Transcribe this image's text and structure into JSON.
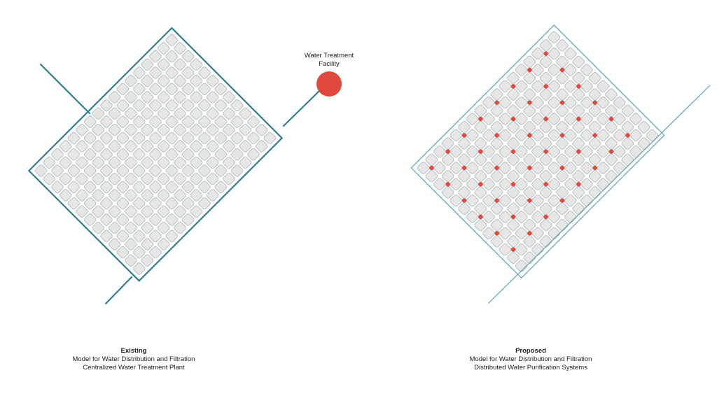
{
  "colors": {
    "teal": "#2e7f8f",
    "teal_light": "#5fa3b3",
    "cell_fill": "#e6e6e6",
    "cell_stroke": "#aab8bd",
    "red": "#e2493e"
  },
  "left": {
    "facility_label_line1": "Water Treatment",
    "facility_label_line2": "Facility",
    "caption_title": "Existing",
    "caption_line1": "Model for Water Distribution and Filtration",
    "caption_line2": "Centralized Water Treatment Plant"
  },
  "right": {
    "caption_title": "Proposed",
    "caption_line1": "Model for Water Distribution and Filtration",
    "caption_line2": "Distributed Water Purification Systems"
  }
}
